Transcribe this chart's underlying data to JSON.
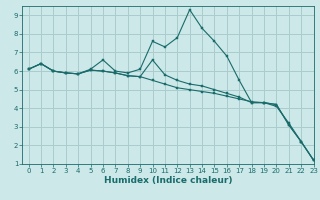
{
  "title": "",
  "xlabel": "Humidex (Indice chaleur)",
  "ylabel": "",
  "background_color": "#cce8e8",
  "grid_color": "#aacccc",
  "line_color": "#1a6b6b",
  "xlim": [
    -0.5,
    23
  ],
  "ylim": [
    1,
    9.5
  ],
  "xticks": [
    0,
    1,
    2,
    3,
    4,
    5,
    6,
    7,
    8,
    9,
    10,
    11,
    12,
    13,
    14,
    15,
    16,
    17,
    18,
    19,
    20,
    21,
    22,
    23
  ],
  "yticks": [
    1,
    2,
    3,
    4,
    5,
    6,
    7,
    8,
    9
  ],
  "line1_x": [
    0,
    1,
    2,
    3,
    4,
    5,
    6,
    7,
    8,
    9,
    10,
    11,
    12,
    13,
    14,
    15,
    16,
    17,
    18,
    19,
    20,
    21,
    22,
    23
  ],
  "line1_y": [
    6.1,
    6.4,
    6.0,
    5.9,
    5.85,
    6.05,
    6.0,
    5.9,
    5.75,
    5.7,
    5.5,
    5.3,
    5.1,
    5.0,
    4.9,
    4.8,
    4.65,
    4.5,
    4.35,
    4.3,
    4.2,
    3.1,
    2.2,
    1.2
  ],
  "line2_x": [
    0,
    1,
    2,
    3,
    4,
    5,
    6,
    7,
    8,
    9,
    10,
    11,
    12,
    13,
    14,
    15,
    16,
    17,
    18,
    19,
    20,
    21,
    22,
    23
  ],
  "line2_y": [
    6.1,
    6.4,
    6.0,
    5.9,
    5.85,
    6.1,
    6.6,
    6.0,
    5.9,
    6.1,
    7.6,
    7.3,
    7.8,
    9.3,
    8.3,
    7.6,
    6.8,
    5.5,
    4.3,
    4.3,
    4.1,
    3.2,
    2.2,
    1.2
  ],
  "line3_x": [
    0,
    1,
    2,
    3,
    4,
    5,
    6,
    7,
    8,
    9,
    10,
    11,
    12,
    13,
    14,
    15,
    16,
    17,
    18,
    19,
    20,
    21,
    22,
    23
  ],
  "line3_y": [
    6.1,
    6.4,
    6.0,
    5.9,
    5.85,
    6.05,
    6.0,
    5.9,
    5.75,
    5.7,
    6.6,
    5.8,
    5.5,
    5.3,
    5.2,
    5.0,
    4.8,
    4.6,
    4.3,
    4.3,
    4.2,
    3.1,
    2.2,
    1.2
  ]
}
